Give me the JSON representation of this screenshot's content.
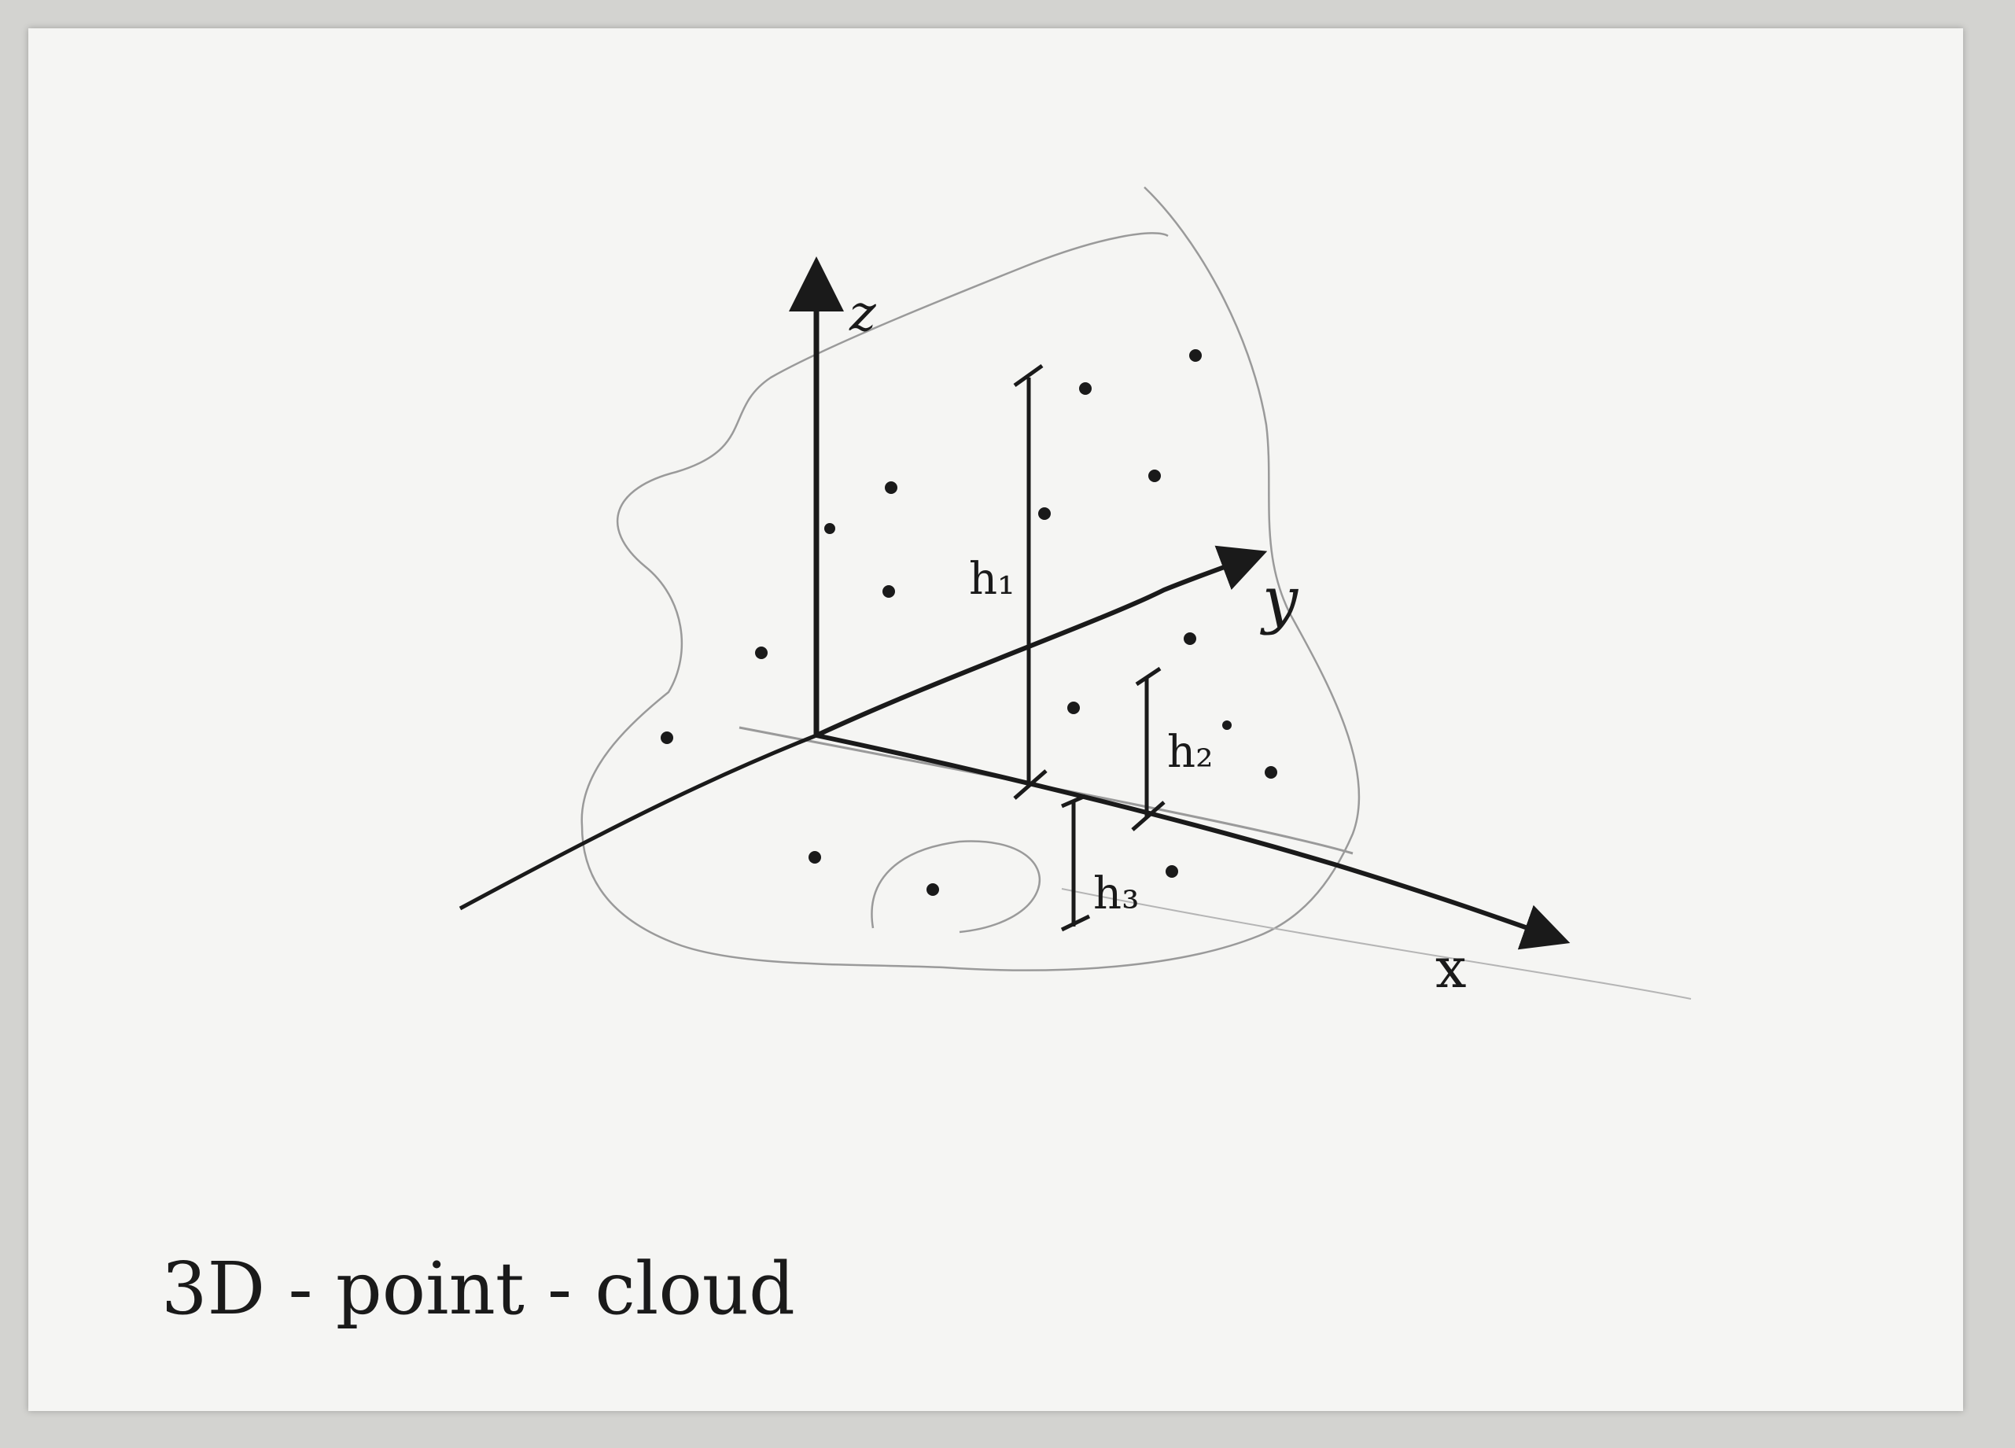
{
  "diagram": {
    "caption": "3D - point - cloud",
    "axes": {
      "x_label": "x",
      "y_label": "y",
      "z_label": "z"
    },
    "heights": {
      "h1_label": "h₁",
      "h2_label": "h₂",
      "h3_label": "h₃"
    },
    "colors": {
      "ink": "#1a1a1a",
      "pencil": "#9a9a9a",
      "paper": "#f5f5f3",
      "background": "#d3d3d0"
    }
  }
}
